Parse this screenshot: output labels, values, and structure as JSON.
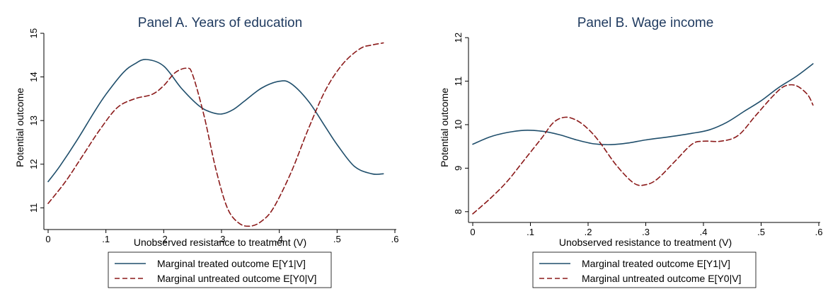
{
  "chart_data": [
    {
      "type": "line",
      "title": "Panel A. Years of education",
      "xlabel": "Unobserved resistance to treatment (V)",
      "ylabel": "Potential outcome",
      "xlim": [
        0,
        0.6
      ],
      "ylim": [
        10.6,
        15
      ],
      "x_ticks": [
        "0",
        ".1",
        ".2",
        ".3",
        ".4",
        ".5",
        ".6"
      ],
      "y_ticks": [
        "11",
        "12",
        "13",
        "14",
        "15"
      ],
      "grid": false,
      "legend_position": "bottom",
      "series": [
        {
          "name": "Marginal treated outcome E[Y1|V]",
          "color": "#1f4e6b",
          "style": "solid",
          "x": [
            0.0,
            0.02,
            0.05,
            0.08,
            0.1,
            0.13,
            0.15,
            0.17,
            0.2,
            0.23,
            0.26,
            0.28,
            0.3,
            0.32,
            0.34,
            0.37,
            0.4,
            0.42,
            0.45,
            0.48,
            0.5,
            0.53,
            0.56,
            0.58
          ],
          "y": [
            11.6,
            11.95,
            12.55,
            13.2,
            13.6,
            14.1,
            14.3,
            14.4,
            14.25,
            13.75,
            13.35,
            13.2,
            13.15,
            13.25,
            13.45,
            13.75,
            13.9,
            13.85,
            13.45,
            12.85,
            12.45,
            11.95,
            11.78,
            11.78
          ]
        },
        {
          "name": "Marginal untreated outcome E[Y0|V]",
          "color": "#8b1a1a",
          "style": "dashed",
          "x": [
            0.0,
            0.03,
            0.06,
            0.09,
            0.12,
            0.15,
            0.18,
            0.2,
            0.22,
            0.24,
            0.25,
            0.27,
            0.29,
            0.31,
            0.33,
            0.35,
            0.37,
            0.39,
            0.42,
            0.45,
            0.48,
            0.51,
            0.54,
            0.56,
            0.58
          ],
          "y": [
            11.1,
            11.6,
            12.2,
            12.8,
            13.3,
            13.5,
            13.6,
            13.8,
            14.1,
            14.2,
            14.05,
            13.1,
            11.9,
            11.0,
            10.65,
            10.58,
            10.7,
            11.0,
            11.8,
            12.8,
            13.7,
            14.3,
            14.65,
            14.73,
            14.78
          ]
        }
      ]
    },
    {
      "type": "line",
      "title": "Panel B. Wage income",
      "xlabel": "Unobserved resistance to treatment (V)",
      "ylabel": "Potential outcome",
      "xlim": [
        0,
        0.6
      ],
      "ylim": [
        7.85,
        12.1
      ],
      "x_ticks": [
        "0",
        ".1",
        ".2",
        ".3",
        ".4",
        ".5",
        ".6"
      ],
      "y_ticks": [
        "8",
        "9",
        "10",
        "11",
        "12"
      ],
      "grid": false,
      "legend_position": "bottom",
      "series": [
        {
          "name": "Marginal treated outcome E[Y1|V]",
          "color": "#1f4e6b",
          "style": "solid",
          "x": [
            0.0,
            0.03,
            0.06,
            0.09,
            0.12,
            0.15,
            0.18,
            0.21,
            0.24,
            0.27,
            0.3,
            0.34,
            0.38,
            0.41,
            0.44,
            0.47,
            0.5,
            0.53,
            0.56,
            0.59
          ],
          "y": [
            9.55,
            9.72,
            9.82,
            9.87,
            9.85,
            9.77,
            9.65,
            9.56,
            9.54,
            9.58,
            9.65,
            9.72,
            9.8,
            9.88,
            10.05,
            10.3,
            10.55,
            10.85,
            11.1,
            11.4
          ]
        },
        {
          "name": "Marginal untreated outcome E[Y0|V]",
          "color": "#8b1a1a",
          "style": "dashed",
          "x": [
            0.0,
            0.03,
            0.06,
            0.09,
            0.12,
            0.14,
            0.16,
            0.18,
            0.2,
            0.22,
            0.25,
            0.28,
            0.3,
            0.32,
            0.35,
            0.38,
            0.4,
            0.43,
            0.46,
            0.49,
            0.52,
            0.54,
            0.56,
            0.58,
            0.59
          ],
          "y": [
            7.95,
            8.3,
            8.7,
            9.2,
            9.7,
            10.05,
            10.17,
            10.1,
            9.9,
            9.6,
            9.05,
            8.65,
            8.62,
            8.75,
            9.15,
            9.55,
            9.62,
            9.62,
            9.75,
            10.2,
            10.65,
            10.88,
            10.9,
            10.7,
            10.45
          ]
        }
      ]
    }
  ]
}
